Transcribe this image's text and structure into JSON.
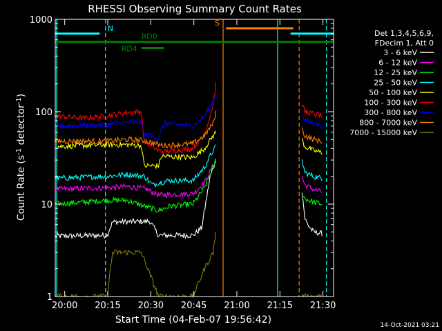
{
  "chart_data": {
    "type": "line",
    "title": "RHESSI Observing Summary Count Rates",
    "xlabel": "Start Time (04-Feb-07 19:56:42)",
    "ylabel_main": "Count Rate (s",
    "ylabel_sup1": "-1",
    "ylabel_mid": " detector",
    "ylabel_sup2": "-1",
    "ylabel_end": ")",
    "y_scale": "log",
    "ylim": [
      1,
      1000
    ],
    "xlim_minutes": [
      0,
      97
    ],
    "x_ticks": [
      {
        "label": "20:00",
        "minutes": 3.3
      },
      {
        "label": "20:15",
        "minutes": 18.3
      },
      {
        "label": "20:30",
        "minutes": 33.3
      },
      {
        "label": "20:45",
        "minutes": 48.3
      },
      {
        "label": "21:00",
        "minutes": 63.3
      },
      {
        "label": "21:15",
        "minutes": 78.3
      },
      {
        "label": "21:30",
        "minutes": 93.3
      }
    ],
    "y_ticks": [
      {
        "label": "1",
        "value": 1
      },
      {
        "label": "10",
        "value": 10
      },
      {
        "label": "100",
        "value": 100
      },
      {
        "label": "1000",
        "value": 1000
      }
    ],
    "legend_header": [
      "Det 1,3,4,5,6,9,",
      "FDecim 1, Att 0"
    ],
    "legend_position": "right",
    "series": [
      {
        "name": "3 - 6 keV",
        "color": "#ffffff",
        "segments": [
          [
            [
              0,
              4.5
            ],
            [
              18,
              4.6
            ],
            [
              20,
              6.4
            ],
            [
              33,
              6.5
            ],
            [
              36,
              4.6
            ],
            [
              48,
              4.6
            ],
            [
              51,
              5.5
            ],
            [
              54,
              20
            ],
            [
              56,
              30
            ]
          ],
          [
            [
              86,
              14
            ],
            [
              87,
              7
            ],
            [
              88,
              6
            ],
            [
              90,
              5
            ],
            [
              93,
              4.8
            ]
          ]
        ]
      },
      {
        "name": "6 - 12 keV",
        "color": "#ff00ff",
        "segments": [
          [
            [
              0,
              14.5
            ],
            [
              18,
              15
            ],
            [
              25,
              15.5
            ],
            [
              32,
              14.5
            ],
            [
              36,
              12.5
            ],
            [
              48,
              13
            ],
            [
              52,
              17
            ],
            [
              55,
              26
            ],
            [
              56,
              30
            ]
          ],
          [
            [
              86,
              20
            ],
            [
              87,
              16
            ],
            [
              90,
              14.5
            ],
            [
              93,
              13.5
            ]
          ]
        ]
      },
      {
        "name": "12 - 25 keV",
        "color": "#00ff00",
        "segments": [
          [
            [
              0,
              10
            ],
            [
              10,
              10.5
            ],
            [
              18,
              11
            ],
            [
              25,
              11
            ],
            [
              31,
              9.5
            ],
            [
              36,
              8.5
            ],
            [
              40,
              9.5
            ],
            [
              48,
              10
            ],
            [
              52,
              15
            ],
            [
              55,
              25
            ],
            [
              56,
              30
            ]
          ],
          [
            [
              86,
              13
            ],
            [
              87,
              11.5
            ],
            [
              90,
              10.5
            ],
            [
              93,
              10
            ]
          ]
        ]
      },
      {
        "name": "25 - 50 keV",
        "color": "#00ffff",
        "segments": [
          [
            [
              0,
              19
            ],
            [
              18,
              20
            ],
            [
              25,
              21
            ],
            [
              31,
              20
            ],
            [
              34,
              16
            ],
            [
              36,
              17
            ],
            [
              40,
              18
            ],
            [
              48,
              18
            ],
            [
              52,
              25
            ],
            [
              55,
              38
            ],
            [
              56,
              42
            ]
          ],
          [
            [
              86,
              30
            ],
            [
              87,
              22
            ],
            [
              90,
              20
            ],
            [
              93,
              19
            ]
          ]
        ]
      },
      {
        "name": "50 - 100 keV",
        "color": "#ffff00",
        "segments": [
          [
            [
              0,
              42
            ],
            [
              18,
              44
            ],
            [
              25,
              44
            ],
            [
              30,
              43
            ],
            [
              31,
              26
            ],
            [
              36,
              26
            ],
            [
              37,
              33
            ],
            [
              48,
              32
            ],
            [
              52,
              40
            ],
            [
              55,
              55
            ],
            [
              56,
              60
            ]
          ],
          [
            [
              86,
              50
            ],
            [
              87,
              42
            ],
            [
              90,
              38
            ],
            [
              93,
              36
            ]
          ]
        ]
      },
      {
        "name": "100 - 300 keV",
        "color": "#ff0000",
        "segments": [
          [
            [
              0,
              90
            ],
            [
              10,
              85
            ],
            [
              18,
              90
            ],
            [
              25,
              98
            ],
            [
              30,
              100
            ],
            [
              31,
              48
            ],
            [
              36,
              38
            ],
            [
              38,
              37
            ],
            [
              48,
              40
            ],
            [
              52,
              55
            ],
            [
              55,
              120
            ],
            [
              56,
              200
            ]
          ],
          [
            [
              86,
              120
            ],
            [
              87,
              100
            ],
            [
              90,
              95
            ],
            [
              93,
              90
            ]
          ]
        ]
      },
      {
        "name": "300 - 800 keV",
        "color": "#0000ff",
        "segments": [
          [
            [
              0,
              70
            ],
            [
              18,
              72
            ],
            [
              25,
              76
            ],
            [
              30,
              77
            ],
            [
              31,
              57
            ],
            [
              36,
              52
            ],
            [
              38,
              75
            ],
            [
              48,
              70
            ],
            [
              52,
              90
            ],
            [
              55,
              130
            ],
            [
              56,
              160
            ]
          ],
          [
            [
              86,
              90
            ],
            [
              87,
              80
            ],
            [
              90,
              75
            ],
            [
              93,
              70
            ]
          ]
        ]
      },
      {
        "name": "800 - 7000 keV",
        "color": "#ff8000",
        "segments": [
          [
            [
              0,
              48
            ],
            [
              18,
              48
            ],
            [
              25,
              50
            ],
            [
              30,
              49
            ],
            [
              33,
              47
            ],
            [
              36,
              44
            ],
            [
              38,
              43
            ],
            [
              48,
              45
            ],
            [
              52,
              55
            ],
            [
              55,
              75
            ],
            [
              56,
              100
            ]
          ],
          [
            [
              86,
              65
            ],
            [
              87,
              55
            ],
            [
              90,
              50
            ],
            [
              93,
              48
            ]
          ]
        ]
      },
      {
        "name": "7000 - 15000 keV",
        "color": "#808000",
        "segments": [
          [
            [
              0,
              1.0
            ],
            [
              18,
              1.0
            ],
            [
              20,
              3.0
            ],
            [
              30,
              3.0
            ],
            [
              36,
              1.0
            ],
            [
              48,
              1.0
            ],
            [
              52,
              2.0
            ],
            [
              55,
              3.0
            ],
            [
              56,
              5.0
            ]
          ],
          [
            [
              86,
              1.0
            ],
            [
              93,
              1.0
            ]
          ]
        ]
      }
    ],
    "flag_lines": [
      {
        "label": "N",
        "color": "#00ffff",
        "segments": [
          [
            0,
            15.5
          ],
          [
            82,
            97
          ]
        ],
        "value": 700
      },
      {
        "label": "S",
        "color": "#ff8000",
        "segments": [
          [
            59.5,
            83
          ]
        ],
        "value": 800
      },
      {
        "label": "RD0",
        "color": "#008000",
        "segments": [
          [
            0,
            97
          ]
        ],
        "value": 570
      }
    ],
    "rd4_marker": {
      "label": "RD4",
      "color": "#008000",
      "from": 30,
      "to": 38,
      "value": 490
    },
    "vertical_lines": [
      {
        "minutes": 0.5,
        "color": "#00ffff",
        "style": "solid"
      },
      {
        "minutes": 17.5,
        "color": "#00ffff",
        "style": "dashed"
      },
      {
        "minutes": 58.5,
        "color": "#ff8000",
        "style": "solid"
      },
      {
        "minutes": 77.5,
        "color": "#00ffff",
        "style": "solid"
      },
      {
        "minutes": 85.0,
        "color": "#ff8000",
        "style": "dashed"
      },
      {
        "minutes": 94.5,
        "color": "#00ffff",
        "style": "dashed"
      }
    ],
    "footer_date": "14-Oct-2021 03:21"
  }
}
